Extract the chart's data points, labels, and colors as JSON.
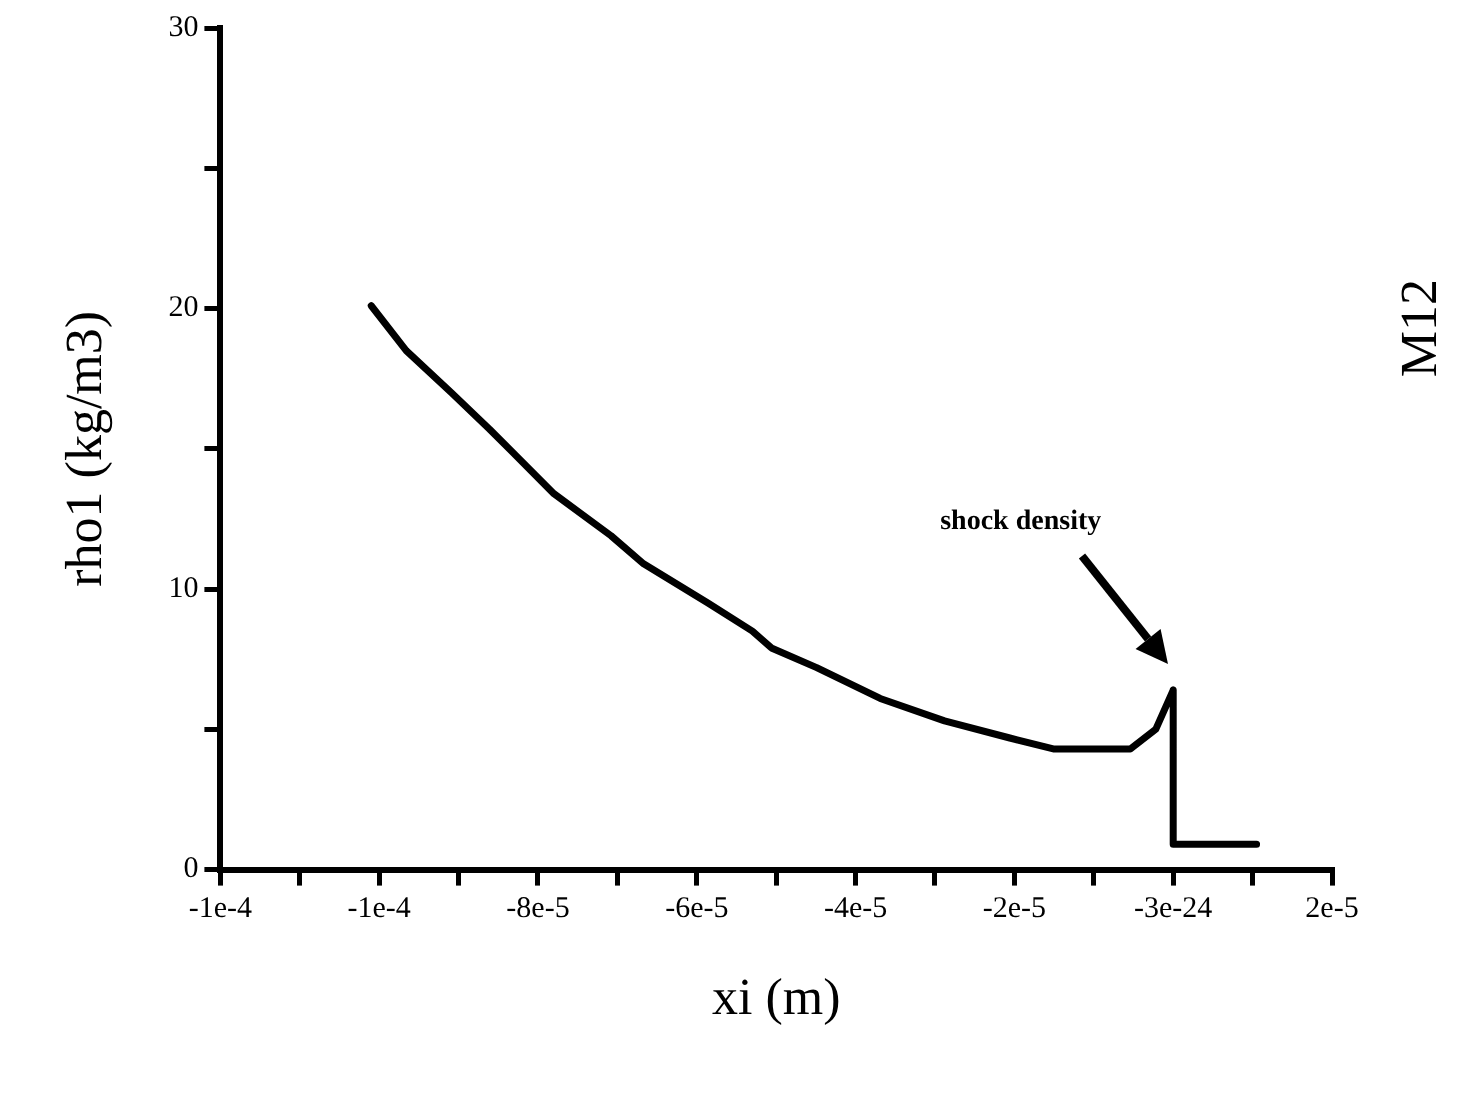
{
  "chart_data": {
    "type": "line",
    "xlabel": "xi (m)",
    "ylabel": "rho1 (kg/m3)",
    "x": [
      -0.000101,
      -9.66e-05,
      -9.09e-05,
      -8.61e-05,
      -7.8e-05,
      -7.08e-05,
      -6.67e-05,
      -5.86e-05,
      -5.3e-05,
      -5.06e-05,
      -4.49e-05,
      -3.69e-05,
      -2.88e-05,
      -2.07e-05,
      -1.51e-05,
      -5.4e-06,
      -2.2e-06,
      0,
      0,
      1.05e-05
    ],
    "series": [
      {
        "color": "#000000",
        "values": [
          20.1,
          18.5,
          17.0,
          15.7,
          13.4,
          11.9,
          10.9,
          9.5,
          8.5,
          7.9,
          7.2,
          6.1,
          5.3,
          4.7,
          4.3,
          4.3,
          5.0,
          6.4,
          0.9,
          0.9
        ]
      }
    ],
    "xlim": [
      -0.00012,
      2e-05
    ],
    "xticks": [
      {
        "value": -0.00012,
        "label": "-1e-4"
      },
      {
        "value": -0.00011,
        "label": null
      },
      {
        "value": -0.0001,
        "label": "-1e-4"
      },
      {
        "value": -9e-05,
        "label": null
      },
      {
        "value": -8e-05,
        "label": "-8e-5"
      },
      {
        "value": -7e-05,
        "label": null
      },
      {
        "value": -6e-05,
        "label": "-6e-5"
      },
      {
        "value": -5e-05,
        "label": null
      },
      {
        "value": -4e-05,
        "label": "-4e-5"
      },
      {
        "value": -3e-05,
        "label": null
      },
      {
        "value": -2e-05,
        "label": "-2e-5"
      },
      {
        "value": -1e-05,
        "label": null
      },
      {
        "value": 0,
        "label": "-3e-24"
      },
      {
        "value": 1e-05,
        "label": null
      },
      {
        "value": 2e-05,
        "label": "2e-5"
      }
    ],
    "ylim": [
      0,
      30
    ],
    "yticks": [
      0,
      {
        "value": 5,
        "label": null
      },
      10,
      {
        "value": 15,
        "label": null
      },
      20,
      {
        "value": 25,
        "label": null
      },
      30
    ],
    "annotations": [
      "shock density",
      "M12"
    ],
    "grid": false,
    "legend": false,
    "marker": "none",
    "line_style": "solid"
  }
}
